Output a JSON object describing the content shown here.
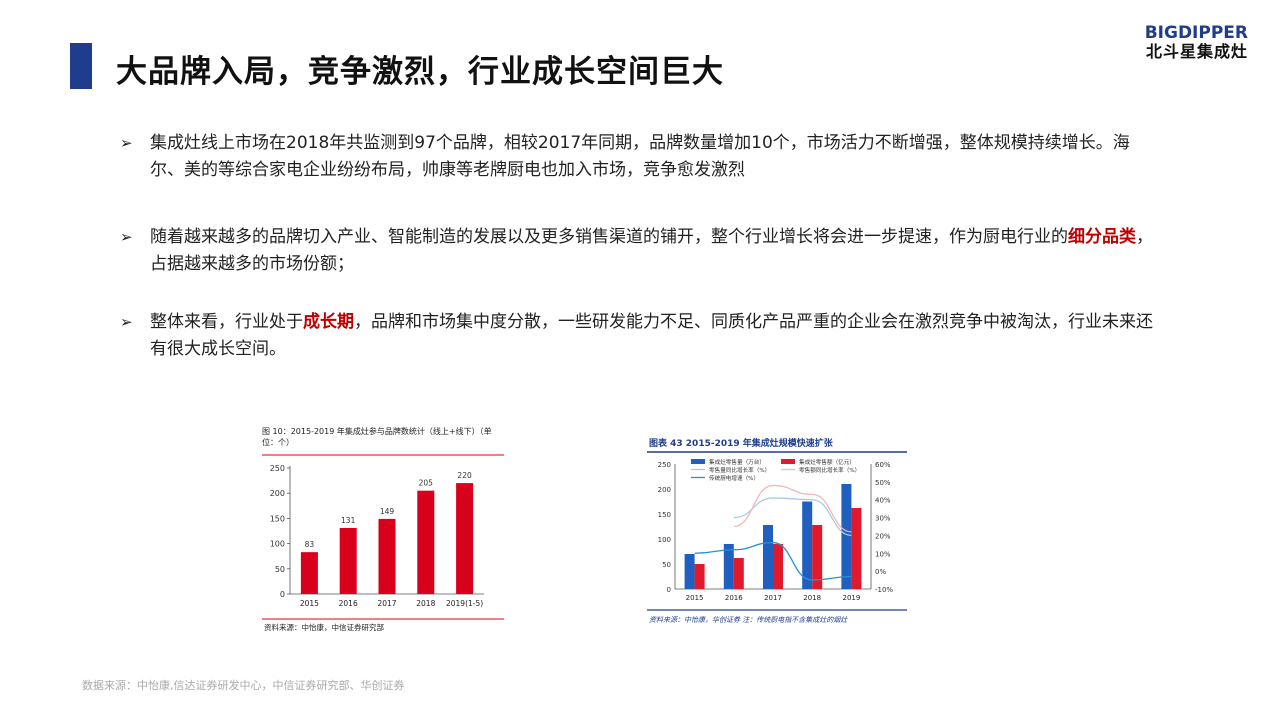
{
  "header": {
    "title": "大品牌入局，竞争激烈，行业成长空间巨大",
    "logo_en": "BIGDIPPER",
    "logo_cn": "北斗星集成灶"
  },
  "bullets": [
    {
      "text": "集成灶线上市场在2018年共监测到97个品牌，相较2017年同期，品牌数量增加10个，市场活力不断增强，整体规模持续增长。海尔、美的等综合家电企业纷纷布局，帅康等老牌厨电也加入市场，竞争愈发激烈"
    },
    {
      "pre": "随着越来越多的品牌切入产业、智能制造的发展以及更多销售渠道的铺开，整个行业增长将会进一步提速，作为厨电行业的",
      "highlight": "细分品类",
      "post": "，占据越来越多的市场份额；"
    },
    {
      "pre": "整体来看，行业处于",
      "highlight": "成长期",
      "post": "，品牌和市场集中度分散，一些研发能力不足、同质化产品严重的企业会在激烈竞争中被淘汰，行业未来还有很大成长空间。"
    }
  ],
  "chart_data": [
    {
      "type": "bar",
      "title": "图 10：2015-2019 年集成灶参与品牌数统计（线上+线下）（单位：个）",
      "categories": [
        "2015",
        "2016",
        "2017",
        "2018",
        "2019(1-5)"
      ],
      "values": [
        83,
        131,
        149,
        205,
        220
      ],
      "ylim": [
        0,
        250
      ],
      "yticks": [
        "0",
        "50",
        "100",
        "150",
        "200",
        "250"
      ],
      "grid": false,
      "source": "资料来源：中怡康，中信证券研究部",
      "color": "#d9001b"
    },
    {
      "type": "bar",
      "title": "图表 43   2015-2019 年集成灶规模快速扩张",
      "categories": [
        "2015",
        "2016",
        "2017",
        "2018",
        "2019"
      ],
      "ylim": [
        0,
        250
      ],
      "y2lim": [
        -10,
        60
      ],
      "yticks": [
        "0",
        "50",
        "100",
        "150",
        "200",
        "250"
      ],
      "y2ticks": [
        "-10%",
        "0%",
        "10%",
        "20%",
        "30%",
        "40%",
        "50%",
        "60%"
      ],
      "series": [
        {
          "name": "集成灶零售量（万台）",
          "kind": "bar",
          "axis": "left",
          "color": "#1f5fbf",
          "values": [
            70,
            90,
            128,
            175,
            210
          ]
        },
        {
          "name": "集成灶零售额（亿元）",
          "kind": "bar",
          "axis": "left",
          "color": "#e0192c",
          "values": [
            50,
            62,
            90,
            128,
            162
          ]
        },
        {
          "name": "零售量同比增长率（%）",
          "kind": "line",
          "axis": "right",
          "color": "#a9c9e8",
          "values": [
            null,
            30,
            41,
            40,
            20
          ]
        },
        {
          "name": "零售额同比增长率（%）",
          "kind": "line",
          "axis": "right",
          "color": "#f2b8b8",
          "values": [
            null,
            25,
            48,
            43,
            22
          ]
        },
        {
          "name": "传统厨电增速（%）",
          "kind": "line",
          "axis": "right",
          "color": "#2b8fd6",
          "values": [
            10,
            12,
            16,
            -5,
            -3
          ]
        }
      ],
      "source": "资料来源：中怡康，华创证券  注：传统厨电指不含集成灶的烟灶"
    }
  ],
  "footer": {
    "source": "数据来源：中怡康,信达证券研发中心，中信证券研究部、华创证券"
  }
}
